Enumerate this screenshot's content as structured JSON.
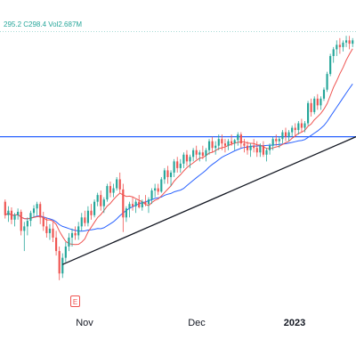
{
  "legend": {
    "ohlc_text": "295.2  C298.4  Vol2.687M"
  },
  "earnings_marker": {
    "label": "E"
  },
  "colors": {
    "up": "#26a69a",
    "down": "#ef5350",
    "ma_fast": "#ef5350",
    "ma_slow": "#2962ff",
    "trendline": "#131722",
    "horizontal_level": "#2962ff",
    "high_line": "#26a69a"
  },
  "chart_data": {
    "type": "candlestick",
    "title": "",
    "x_ticks": [
      {
        "label": "Nov",
        "bold": false
      },
      {
        "label": "Dec",
        "bold": false
      },
      {
        "label": "2023",
        "bold": true
      }
    ],
    "grid": false,
    "ohlc": [
      [
        240,
        242,
        225,
        228
      ],
      [
        228,
        236,
        222,
        232
      ],
      [
        232,
        235,
        220,
        224
      ],
      [
        224,
        230,
        218,
        228
      ],
      [
        228,
        234,
        224,
        231
      ],
      [
        231,
        233,
        210,
        214
      ],
      [
        214,
        222,
        196,
        218
      ],
      [
        218,
        226,
        210,
        223
      ],
      [
        223,
        232,
        218,
        230
      ],
      [
        230,
        237,
        226,
        234
      ],
      [
        234,
        240,
        228,
        238
      ],
      [
        238,
        240,
        220,
        226
      ],
      [
        226,
        231,
        214,
        218
      ],
      [
        218,
        226,
        208,
        212
      ],
      [
        212,
        220,
        206,
        216
      ],
      [
        216,
        222,
        204,
        208
      ],
      [
        208,
        214,
        192,
        196
      ],
      [
        196,
        200,
        170,
        176
      ],
      [
        176,
        194,
        172,
        190
      ],
      [
        190,
        204,
        186,
        200
      ],
      [
        200,
        212,
        196,
        208
      ],
      [
        208,
        216,
        200,
        212
      ],
      [
        212,
        218,
        206,
        210
      ],
      [
        210,
        222,
        206,
        218
      ],
      [
        218,
        230,
        214,
        226
      ],
      [
        226,
        232,
        218,
        221
      ],
      [
        221,
        236,
        218,
        232
      ],
      [
        232,
        238,
        224,
        228
      ],
      [
        228,
        242,
        226,
        240
      ],
      [
        240,
        248,
        236,
        246
      ],
      [
        246,
        250,
        232,
        236
      ],
      [
        236,
        244,
        230,
        242
      ],
      [
        242,
        256,
        240,
        254
      ],
      [
        254,
        258,
        244,
        248
      ],
      [
        248,
        256,
        244,
        252
      ],
      [
        252,
        262,
        250,
        260
      ],
      [
        260,
        266,
        248,
        251
      ],
      [
        251,
        256,
        213,
        226
      ],
      [
        226,
        236,
        222,
        234
      ],
      [
        234,
        240,
        226,
        238
      ],
      [
        238,
        244,
        232,
        236
      ],
      [
        236,
        242,
        230,
        240
      ],
      [
        240,
        246,
        234,
        235
      ],
      [
        235,
        242,
        232,
        240
      ],
      [
        240,
        246,
        236,
        238
      ],
      [
        238,
        244,
        230,
        242
      ],
      [
        242,
        252,
        238,
        250
      ],
      [
        250,
        256,
        244,
        252
      ],
      [
        252,
        256,
        246,
        249
      ],
      [
        249,
        262,
        248,
        260
      ],
      [
        260,
        270,
        256,
        268
      ],
      [
        268,
        272,
        256,
        262
      ],
      [
        262,
        268,
        254,
        266
      ],
      [
        266,
        278,
        262,
        276
      ],
      [
        276,
        280,
        266,
        270
      ],
      [
        270,
        278,
        266,
        274
      ],
      [
        274,
        284,
        270,
        282
      ],
      [
        282,
        286,
        272,
        276
      ],
      [
        276,
        282,
        270,
        280
      ],
      [
        280,
        288,
        276,
        286
      ],
      [
        286,
        290,
        278,
        282
      ],
      [
        282,
        286,
        276,
        284
      ],
      [
        284,
        290,
        278,
        281
      ],
      [
        281,
        288,
        276,
        286
      ],
      [
        286,
        296,
        282,
        294
      ],
      [
        294,
        298,
        284,
        288
      ],
      [
        288,
        294,
        282,
        290
      ],
      [
        290,
        300,
        286,
        296
      ],
      [
        296,
        300,
        286,
        292
      ],
      [
        292,
        296,
        284,
        290
      ],
      [
        290,
        296,
        286,
        294
      ],
      [
        294,
        300,
        290,
        292
      ],
      [
        292,
        296,
        286,
        295
      ],
      [
        295,
        302,
        290,
        300
      ],
      [
        300,
        302,
        288,
        292
      ],
      [
        292,
        296,
        284,
        290
      ],
      [
        290,
        294,
        282,
        286
      ],
      [
        286,
        292,
        280,
        290
      ],
      [
        290,
        296,
        284,
        288
      ],
      [
        288,
        294,
        280,
        284
      ],
      [
        284,
        292,
        280,
        290
      ],
      [
        290,
        294,
        280,
        282
      ],
      [
        282,
        288,
        276,
        286
      ],
      [
        286,
        292,
        282,
        290
      ],
      [
        290,
        298,
        286,
        296
      ],
      [
        296,
        300,
        290,
        294
      ],
      [
        294,
        298,
        288,
        296
      ],
      [
        296,
        304,
        292,
        302
      ],
      [
        302,
        306,
        294,
        298
      ],
      [
        298,
        304,
        294,
        302
      ],
      [
        302,
        308,
        298,
        306
      ],
      [
        306,
        310,
        298,
        304
      ],
      [
        304,
        312,
        300,
        310
      ],
      [
        310,
        314,
        302,
        306
      ],
      [
        306,
        312,
        302,
        310
      ],
      [
        310,
        330,
        308,
        328
      ],
      [
        328,
        332,
        316,
        320
      ],
      [
        320,
        334,
        318,
        332
      ],
      [
        332,
        336,
        322,
        326
      ],
      [
        326,
        334,
        322,
        332
      ],
      [
        332,
        342,
        330,
        340
      ],
      [
        340,
        356,
        338,
        354
      ],
      [
        354,
        372,
        352,
        370
      ],
      [
        370,
        378,
        364,
        376
      ],
      [
        376,
        384,
        370,
        380
      ],
      [
        380,
        386,
        372,
        378
      ],
      [
        378,
        384,
        374,
        382
      ],
      [
        382,
        388,
        378,
        384
      ],
      [
        384,
        388,
        376,
        381
      ],
      [
        381,
        386,
        378,
        384
      ]
    ],
    "levels": {
      "horizontal": 298.0,
      "high": 392.0,
      "trendline_from": 184.0,
      "trendline_to": 298.0
    },
    "ylim": [
      150,
      420
    ]
  }
}
